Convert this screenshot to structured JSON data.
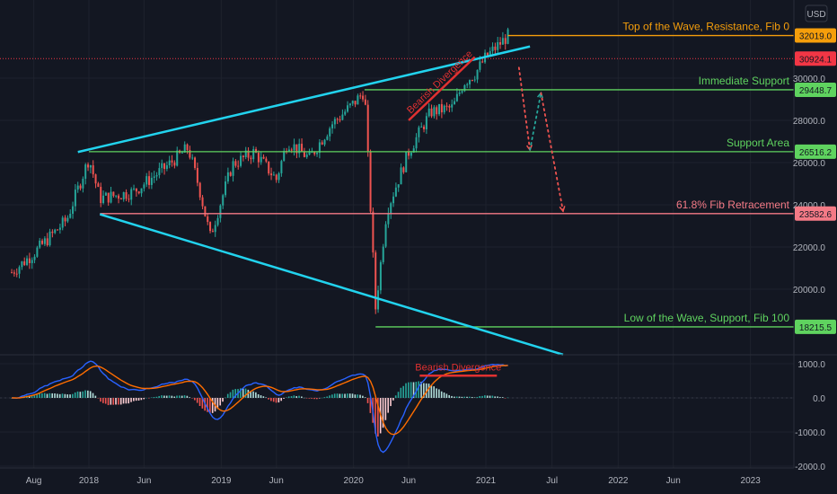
{
  "currency": "USD",
  "colors": {
    "background": "#131722",
    "grid": "#1e222d",
    "up_candle": "#26a69a",
    "down_candle": "#ef5350",
    "trendline": "#22d3ee",
    "support": "#5fd35f",
    "resistance": "#f59e0b",
    "fib": "#f47a86",
    "divergence": "#e03131",
    "macd_line": "#2962ff",
    "signal_line": "#ff6d00"
  },
  "chart_data": {
    "type": "candlestick",
    "x_ticks": [
      "Aug",
      "2018",
      "Jun",
      "2019",
      "Jun",
      "2020",
      "Jun",
      "2021",
      "Jul",
      "2022",
      "Jun",
      "2023"
    ],
    "y_ticks": [
      20000.0,
      22000.0,
      24000.0,
      26000.0,
      28000.0,
      30000.0
    ],
    "ylim": [
      17300,
      33000
    ],
    "price_series": {
      "name": "",
      "anchors": [
        [
          "2017-06",
          20800
        ],
        [
          "2017-08",
          21700
        ],
        [
          "2017-11",
          23300
        ],
        [
          "2018-01",
          26200
        ],
        [
          "2018-02",
          24300
        ],
        [
          "2018-05",
          24600
        ],
        [
          "2018-08",
          25800
        ],
        [
          "2018-10",
          26700
        ],
        [
          "2018-11",
          24800
        ],
        [
          "2018-12",
          22500
        ],
        [
          "2019-02",
          25900
        ],
        [
          "2019-04",
          26500
        ],
        [
          "2019-06",
          25200
        ],
        [
          "2019-07",
          27000
        ],
        [
          "2019-09",
          26200
        ],
        [
          "2019-11",
          27800
        ],
        [
          "2020-01",
          28800
        ],
        [
          "2020-02",
          29400
        ],
        [
          "2020-03",
          19100
        ],
        [
          "2020-04",
          23700
        ],
        [
          "2020-06",
          26500
        ],
        [
          "2020-08",
          28400
        ],
        [
          "2020-10",
          28600
        ],
        [
          "2020-11",
          29800
        ],
        [
          "2020-12",
          30200
        ],
        [
          "2021-01",
          31000
        ],
        [
          "2021-03",
          32000
        ]
      ]
    },
    "horizontal_levels": [
      {
        "label": "Top of the Wave, Resistance, Fib 0",
        "value": 32019.0,
        "value_label": "32019.0",
        "color": "#f59e0b"
      },
      {
        "label": "",
        "value": 30924.1,
        "value_label": "30924.1",
        "color": "#f23645"
      },
      {
        "label": "Immediate Support",
        "value": 29448.7,
        "value_label": "29448.7",
        "color": "#5fd35f"
      },
      {
        "label": "Support Area",
        "value": 26516.2,
        "value_label": "26516.2",
        "color": "#5fd35f"
      },
      {
        "label": "61.8% Fib Retracement",
        "value": 23582.6,
        "value_label": "23582.6",
        "color": "#f47a86"
      },
      {
        "label": "Low of the Wave, Support, Fib 100",
        "value": 18215.5,
        "value_label": "18215.5",
        "color": "#5fd35f"
      }
    ],
    "annotations": {
      "price_divergence": "Bearish Divergence",
      "macd_divergence": "Bearish Divergence"
    },
    "projection_path": [
      [
        "2021-04",
        30500
      ],
      [
        "2021-05",
        26600
      ],
      [
        "2021-06",
        29300
      ],
      [
        "2021-08",
        23700
      ]
    ],
    "macd": {
      "y_ticks": [
        1000.0,
        0.0,
        -1000.0,
        -2000.0
      ],
      "ylim": [
        -2000,
        1100
      ]
    }
  }
}
